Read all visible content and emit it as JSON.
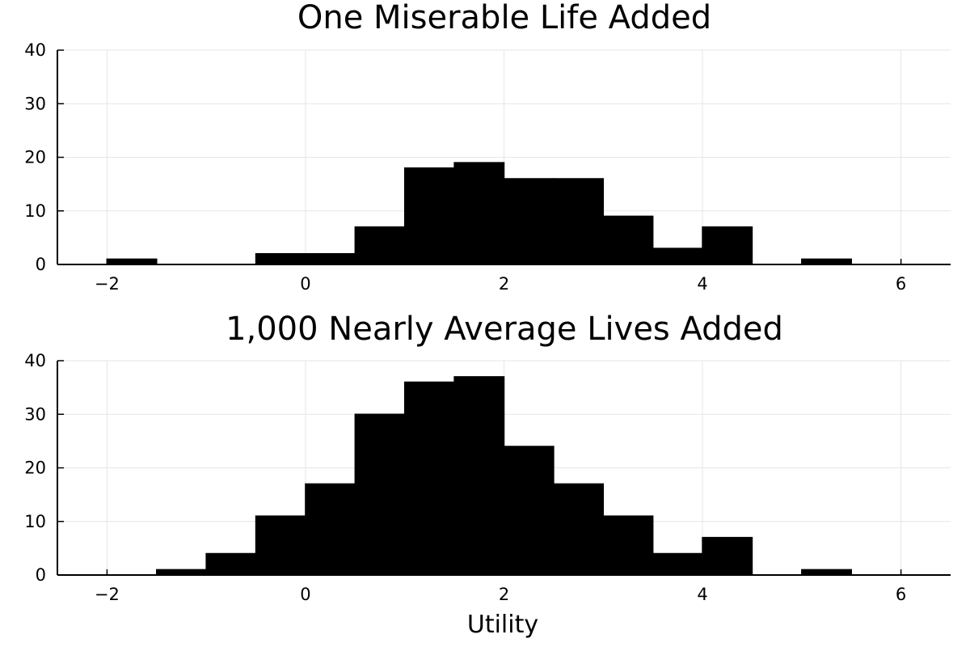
{
  "chart_data": [
    {
      "type": "bar",
      "title": "One Miserable Life Added",
      "xlabel": "",
      "ylabel": "",
      "bin_edges": [
        -2.0,
        -1.5,
        -1.0,
        -0.5,
        0.0,
        0.5,
        1.0,
        1.5,
        2.0,
        2.5,
        3.0,
        3.5,
        4.0,
        4.5,
        5.0,
        5.5,
        6.0
      ],
      "values": [
        1,
        0,
        0,
        2,
        2,
        7,
        18,
        19,
        16,
        16,
        9,
        3,
        7,
        0,
        1,
        0
      ],
      "xlim": [
        -2.5,
        6.5
      ],
      "ylim": [
        0,
        40
      ],
      "xticks": [
        -2,
        0,
        2,
        4,
        6
      ],
      "xtick_labels": [
        "−2",
        "0",
        "2",
        "4",
        "6"
      ],
      "yticks": [
        0,
        10,
        20,
        30,
        40
      ],
      "ytick_labels": [
        "0",
        "10",
        "20",
        "30",
        "40"
      ],
      "grid": true,
      "color": "#000000"
    },
    {
      "type": "bar",
      "title": "1,000 Nearly Average Lives Added",
      "xlabel": "Utility",
      "ylabel": "",
      "bin_edges": [
        -2.0,
        -1.5,
        -1.0,
        -0.5,
        0.0,
        0.5,
        1.0,
        1.5,
        2.0,
        2.5,
        3.0,
        3.5,
        4.0,
        4.5,
        5.0,
        5.5,
        6.0
      ],
      "values": [
        0,
        1,
        4,
        11,
        17,
        30,
        36,
        37,
        24,
        17,
        11,
        4,
        7,
        0,
        1,
        0
      ],
      "xlim": [
        -2.5,
        6.5
      ],
      "ylim": [
        0,
        40
      ],
      "xticks": [
        -2,
        0,
        2,
        4,
        6
      ],
      "xtick_labels": [
        "−2",
        "0",
        "2",
        "4",
        "6"
      ],
      "yticks": [
        0,
        10,
        20,
        30,
        40
      ],
      "ytick_labels": [
        "0",
        "10",
        "20",
        "30",
        "40"
      ],
      "grid": true,
      "color": "#000000"
    }
  ]
}
